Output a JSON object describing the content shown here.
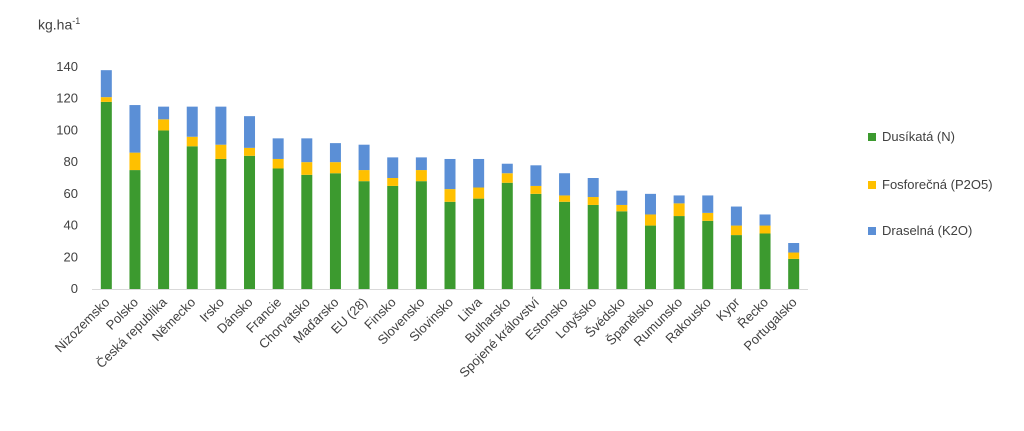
{
  "chart_data": {
    "type": "bar",
    "stacked": true,
    "ylabel": "kg.ha",
    "ylabel_sup": "-1",
    "ylim": [
      0,
      140
    ],
    "yticks": [
      0,
      20,
      40,
      60,
      80,
      100,
      120,
      140
    ],
    "grid": false,
    "legend_position": "right",
    "categories": [
      "Nizozemsko",
      "Polsko",
      "Česká republika",
      "Německo",
      "Irsko",
      "Dánsko",
      "Francie",
      "Chorvatsko",
      "Maďarsko",
      "EU (28)",
      "Finsko",
      "Slovensko",
      "Slovinsko",
      "Litva",
      "Bulharsko",
      "Spojené království",
      "Estonsko",
      "Lotyšsko",
      "Švédsko",
      "Španělsko",
      "Rumunsko",
      "Rakousko",
      "Kypr",
      "Řecko",
      "Portugalsko"
    ],
    "series": [
      {
        "name": "Dusíkatá (N)",
        "color": "#3c9a2f",
        "values": [
          118,
          75,
          100,
          90,
          82,
          84,
          76,
          72,
          73,
          68,
          65,
          68,
          55,
          57,
          67,
          60,
          55,
          53,
          49,
          40,
          46,
          43,
          34,
          35,
          19
        ]
      },
      {
        "name": "Fosforečná (P2O5)",
        "color": "#ffc000",
        "values": [
          3,
          11,
          7,
          6,
          9,
          5,
          6,
          8,
          7,
          7,
          5,
          7,
          8,
          7,
          6,
          5,
          4,
          5,
          4,
          7,
          8,
          5,
          6,
          5,
          4
        ]
      },
      {
        "name": "Draselná (K2O)",
        "color": "#5b8fd6",
        "values": [
          17,
          30,
          8,
          19,
          24,
          20,
          13,
          15,
          12,
          16,
          13,
          8,
          19,
          18,
          6,
          13,
          14,
          12,
          9,
          13,
          5,
          11,
          12,
          7,
          6
        ]
      }
    ]
  }
}
